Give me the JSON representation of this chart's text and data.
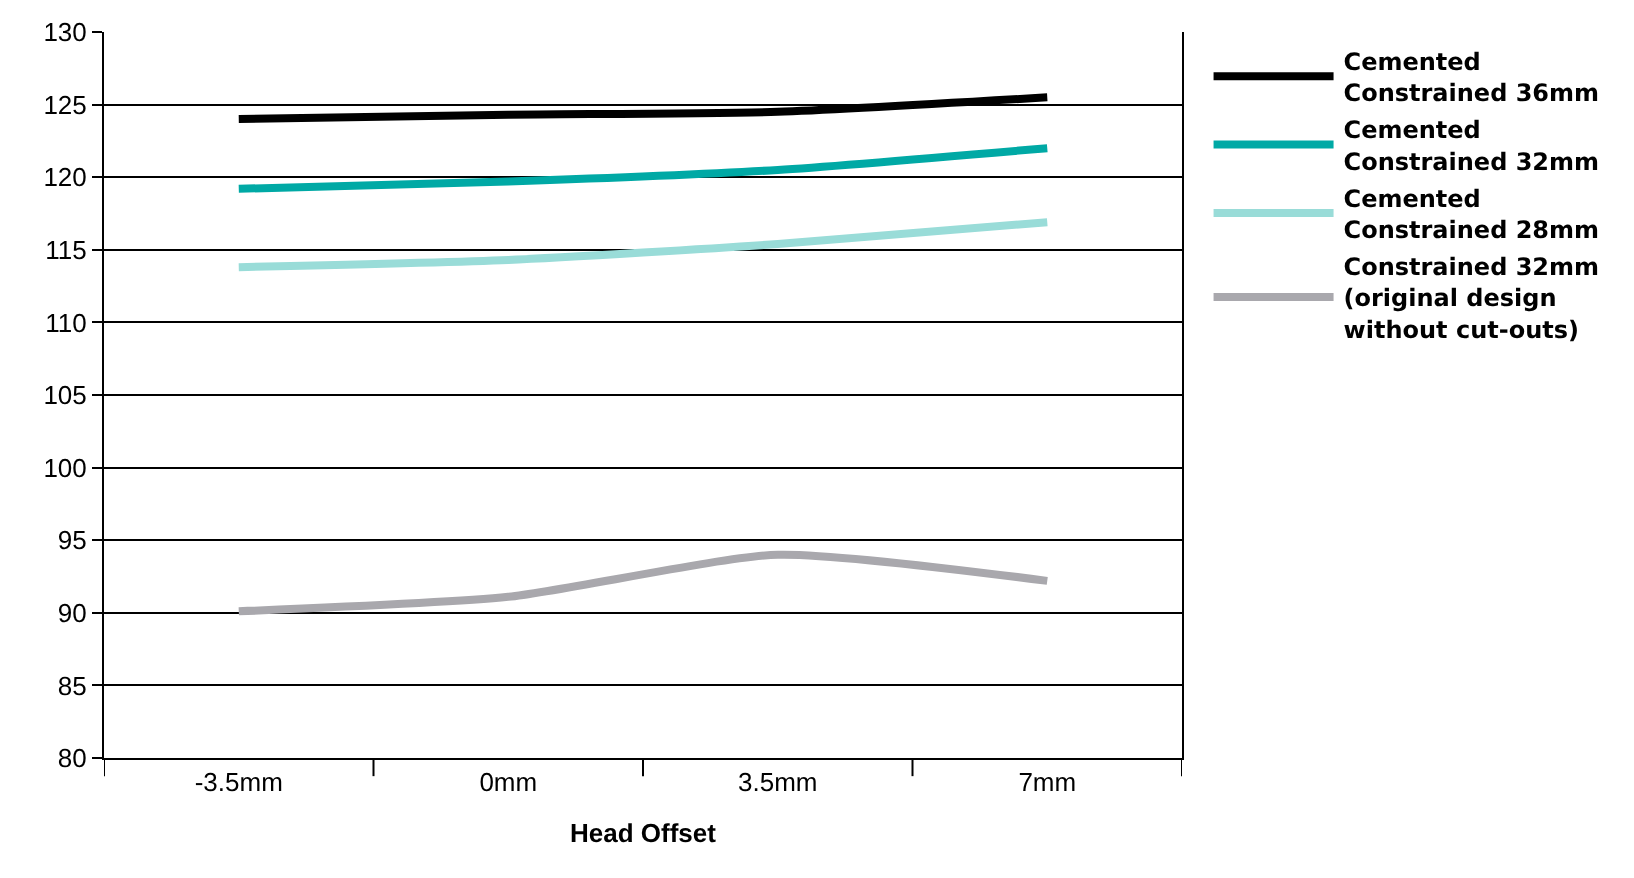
{
  "chart_data": {
    "type": "line",
    "xlabel": "Head Offset",
    "categories": [
      "-3.5mm",
      "0mm",
      "3.5mm",
      "7mm"
    ],
    "series": [
      {
        "name": "Cemented\nConstrained 36mm",
        "color": "#000000",
        "values": [
          124,
          124.3,
          124.5,
          125.5
        ]
      },
      {
        "name": "Cemented\nConstrained 32mm",
        "color": "#00a9a5",
        "values": [
          119.2,
          119.7,
          120.5,
          122
        ]
      },
      {
        "name": "Cemented\nConstrained 28mm",
        "color": "#99dcd8",
        "values": [
          113.8,
          114.3,
          115.4,
          116.9
        ]
      },
      {
        "name": "Constrained 32mm\n(original design\nwithout cut-outs)",
        "color": "#a9a8ad",
        "values": [
          90.1,
          91.1,
          94,
          92.2
        ]
      }
    ],
    "ylim": [
      80,
      130
    ],
    "yticks": [
      80,
      85,
      90,
      95,
      100,
      105,
      110,
      115,
      120,
      125,
      130
    ],
    "grid": "y",
    "legend": "right",
    "marker": "none",
    "line_style": "solid"
  }
}
